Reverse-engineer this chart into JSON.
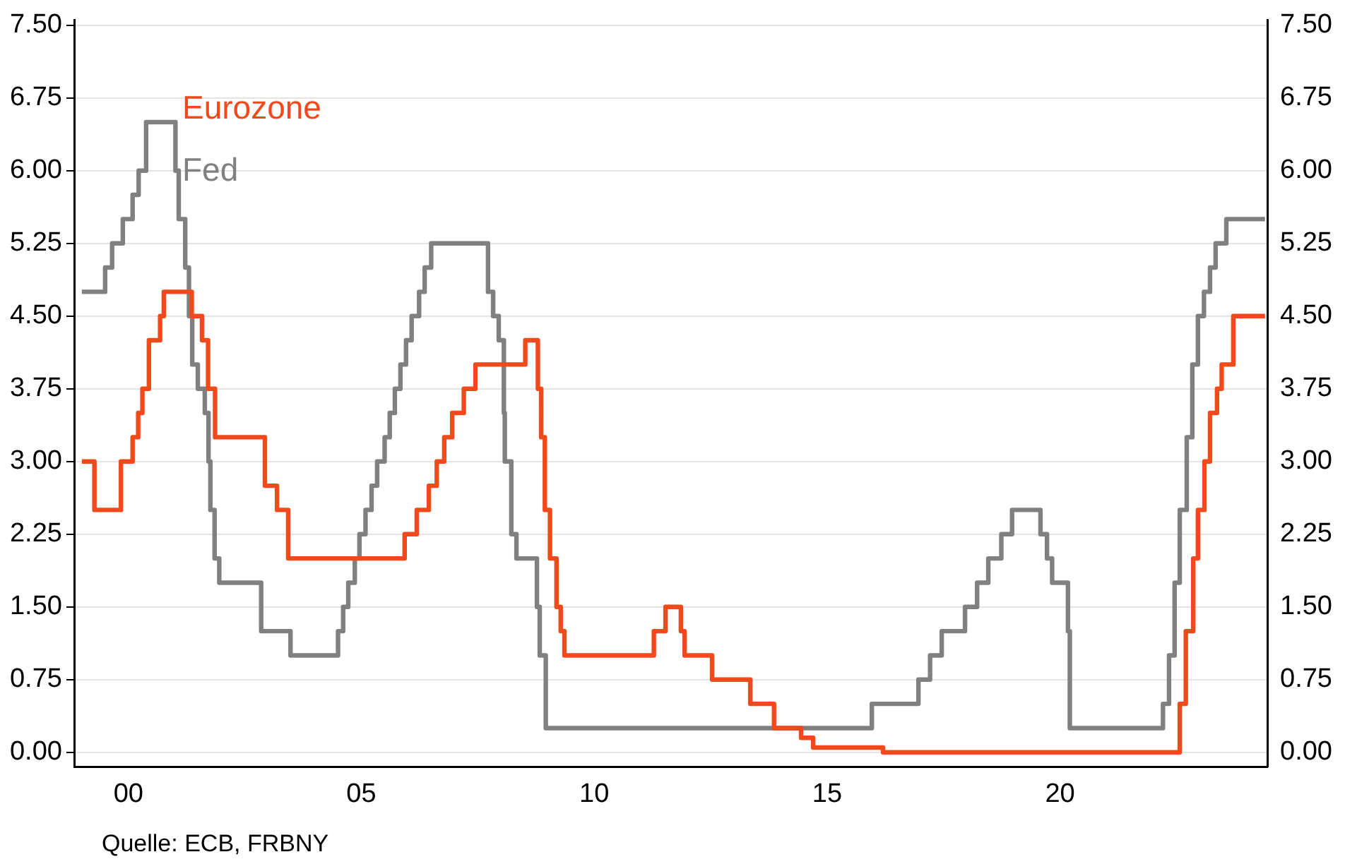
{
  "chart_data": {
    "type": "step",
    "xlim": [
      1998.85,
      2024.45
    ],
    "xticks": [
      {
        "value": 2000,
        "label": "00"
      },
      {
        "value": 2005,
        "label": "05"
      },
      {
        "value": 2010,
        "label": "10"
      },
      {
        "value": 2015,
        "label": "15"
      },
      {
        "value": 2020,
        "label": "20"
      }
    ],
    "ylim": [
      -0.15,
      7.55
    ],
    "yticks": [
      {
        "value": 0,
        "label": "0.00"
      },
      {
        "value": 0.75,
        "label": "0.75"
      },
      {
        "value": 1.5,
        "label": "1.50"
      },
      {
        "value": 2.25,
        "label": "2.25"
      },
      {
        "value": 3,
        "label": "3.00"
      },
      {
        "value": 3.75,
        "label": "3.75"
      },
      {
        "value": 4.5,
        "label": "4.50"
      },
      {
        "value": 5.25,
        "label": "5.25"
      },
      {
        "value": 6,
        "label": "6.00"
      },
      {
        "value": 6.75,
        "label": "6.75"
      },
      {
        "value": 7.5,
        "label": "7.50"
      }
    ],
    "y2lim": [
      -0.15,
      7.55
    ],
    "y2ticks": [
      {
        "value": 0,
        "label": "0.00"
      },
      {
        "value": 0.75,
        "label": "0.75"
      },
      {
        "value": 1.5,
        "label": "1.50"
      },
      {
        "value": 2.25,
        "label": "2.25"
      },
      {
        "value": 3,
        "label": "3.00"
      },
      {
        "value": 3.75,
        "label": "3.75"
      },
      {
        "value": 4.5,
        "label": "4.50"
      },
      {
        "value": 5.25,
        "label": "5.25"
      },
      {
        "value": 6,
        "label": "6.00"
      },
      {
        "value": 6.75,
        "label": "6.75"
      },
      {
        "value": 7.5,
        "label": "7.50"
      }
    ],
    "grid": "y",
    "legend": "top left",
    "marker": "none",
    "line_style": "solid",
    "annotations": [
      "Quelle: ECB, FRBNY"
    ],
    "series": [
      {
        "name": "Eurozone",
        "color": "#f04a1c",
        "x": [
          1999.0,
          1999.27,
          1999.84,
          2000.09,
          2000.21,
          2000.3,
          2000.44,
          2000.68,
          2000.76,
          2001.36,
          2001.58,
          2001.71,
          2001.86,
          2002.93,
          2003.19,
          2003.43,
          2005.93,
          2006.19,
          2006.45,
          2006.62,
          2006.78,
          2006.95,
          2007.2,
          2007.45,
          2008.52,
          2008.79,
          2008.86,
          2008.94,
          2009.05,
          2009.19,
          2009.28,
          2009.36,
          2011.28,
          2011.53,
          2011.86,
          2011.94,
          2012.53,
          2013.35,
          2013.86,
          2014.44,
          2014.7,
          2016.2,
          2022.57,
          2022.7,
          2022.86,
          2022.96,
          2023.1,
          2023.22,
          2023.37,
          2023.47,
          2023.72,
          2024.4
        ],
        "values": [
          3.0,
          2.5,
          3.0,
          3.25,
          3.5,
          3.75,
          4.25,
          4.5,
          4.75,
          4.5,
          4.25,
          3.75,
          3.25,
          2.75,
          2.5,
          2.0,
          2.25,
          2.5,
          2.75,
          3.0,
          3.25,
          3.5,
          3.75,
          4.0,
          4.25,
          3.75,
          3.25,
          2.5,
          2.0,
          1.5,
          1.25,
          1.0,
          1.25,
          1.5,
          1.25,
          1.0,
          0.75,
          0.5,
          0.25,
          0.15,
          0.05,
          0.0,
          0.5,
          1.25,
          2.0,
          2.5,
          3.0,
          3.5,
          3.75,
          4.0,
          4.5,
          4.5
        ]
      },
      {
        "name": "Fed",
        "color": "#808080",
        "x": [
          1999.0,
          1999.5,
          1999.65,
          1999.88,
          2000.09,
          2000.22,
          2000.38,
          2001.01,
          2001.08,
          2001.22,
          2001.3,
          2001.37,
          2001.49,
          2001.64,
          2001.72,
          2001.76,
          2001.85,
          2001.95,
          2002.85,
          2003.48,
          2004.5,
          2004.61,
          2004.72,
          2004.86,
          2004.96,
          2005.09,
          2005.22,
          2005.34,
          2005.5,
          2005.61,
          2005.72,
          2005.84,
          2005.96,
          2006.08,
          2006.24,
          2006.36,
          2006.5,
          2007.72,
          2007.83,
          2007.95,
          2008.06,
          2008.08,
          2008.22,
          2008.33,
          2008.77,
          2008.83,
          2008.96,
          2015.96,
          2016.96,
          2017.21,
          2017.46,
          2017.96,
          2018.22,
          2018.46,
          2018.74,
          2018.97,
          2019.58,
          2019.72,
          2019.83,
          2020.17,
          2020.21,
          2022.21,
          2022.34,
          2022.46,
          2022.57,
          2022.72,
          2022.84,
          2022.96,
          2023.09,
          2023.22,
          2023.34,
          2023.57,
          2024.4
        ],
        "values": [
          4.75,
          5.0,
          5.25,
          5.5,
          5.75,
          6.0,
          6.5,
          6.0,
          5.5,
          5.0,
          4.5,
          4.0,
          3.75,
          3.5,
          3.0,
          2.5,
          2.0,
          1.75,
          1.25,
          1.0,
          1.25,
          1.5,
          1.75,
          2.0,
          2.25,
          2.5,
          2.75,
          3.0,
          3.25,
          3.5,
          3.75,
          4.0,
          4.25,
          4.5,
          4.75,
          5.0,
          5.25,
          4.75,
          4.5,
          4.25,
          3.5,
          3.0,
          2.25,
          2.0,
          1.5,
          1.0,
          0.25,
          0.5,
          0.75,
          1.0,
          1.25,
          1.5,
          1.75,
          2.0,
          2.25,
          2.5,
          2.25,
          2.0,
          1.75,
          1.25,
          0.25,
          0.5,
          1.0,
          1.75,
          2.5,
          3.25,
          4.0,
          4.5,
          4.75,
          5.0,
          5.25,
          5.5,
          5.5
        ]
      }
    ]
  }
}
